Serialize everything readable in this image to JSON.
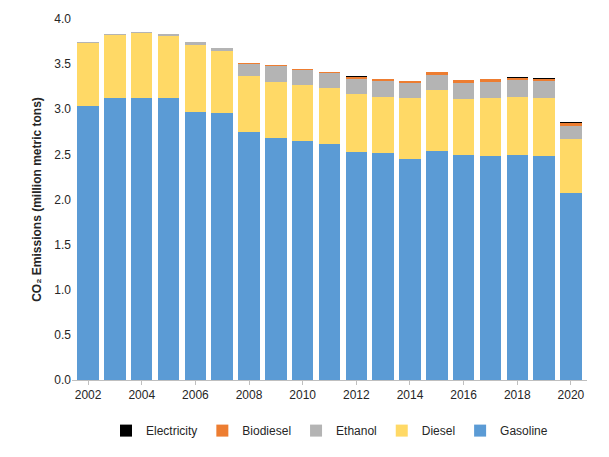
{
  "chart_data": {
    "type": "bar",
    "stacked": true,
    "grid": false,
    "legend": "bottom",
    "y_label": "CO₂ Emissions (million metric tons)",
    "x": [
      2002,
      2003,
      2004,
      2005,
      2006,
      2007,
      2008,
      2009,
      2010,
      2011,
      2012,
      2013,
      2014,
      2015,
      2016,
      2017,
      2018,
      2019,
      2020
    ],
    "xlim": [
      2001.4,
      2020.6
    ],
    "xticks": [
      2002,
      2004,
      2006,
      2008,
      2010,
      2012,
      2014,
      2016,
      2018,
      2020
    ],
    "ylim": [
      0,
      4
    ],
    "yticks": [
      {
        "value": 0,
        "label": "0.0"
      },
      0.5,
      {
        "value": 1,
        "label": "1.0"
      },
      1.5,
      {
        "value": 2,
        "label": "2.0"
      },
      2.5,
      {
        "value": 3,
        "label": "3.0"
      },
      3.5,
      {
        "value": 4,
        "label": "4.0"
      }
    ],
    "series": [
      {
        "name": "Gasoline",
        "color": "#5b9bd5",
        "values": [
          3.04,
          3.13,
          3.13,
          3.12,
          2.97,
          2.96,
          2.75,
          2.68,
          2.65,
          2.61,
          2.53,
          2.52,
          2.45,
          2.54,
          2.49,
          2.48,
          2.49,
          2.48,
          2.07
        ]
      },
      {
        "name": "Diesel",
        "color": "#ffd966",
        "values": [
          0.69,
          0.69,
          0.72,
          0.69,
          0.74,
          0.69,
          0.62,
          0.62,
          0.62,
          0.62,
          0.64,
          0.62,
          0.67,
          0.67,
          0.62,
          0.64,
          0.65,
          0.65,
          0.6
        ]
      },
      {
        "name": "Ethanol",
        "color": "#b4b4b4",
        "values": [
          0.01,
          0.01,
          0.01,
          0.02,
          0.03,
          0.03,
          0.13,
          0.18,
          0.17,
          0.17,
          0.17,
          0.17,
          0.17,
          0.17,
          0.18,
          0.18,
          0.18,
          0.18,
          0.15
        ]
      },
      {
        "name": "Biodiesel",
        "color": "#ed7d31",
        "values": [
          0,
          0,
          0,
          0,
          0,
          0,
          0.01,
          0.01,
          0.01,
          0.01,
          0.02,
          0.02,
          0.02,
          0.03,
          0.03,
          0.03,
          0.03,
          0.03,
          0.03
        ]
      },
      {
        "name": "Electricity",
        "color": "#000000",
        "values": [
          0,
          0,
          0,
          0,
          0,
          0,
          0,
          0,
          0,
          0,
          0.003,
          0.003,
          0.003,
          0.003,
          0.003,
          0.003,
          0.005,
          0.005,
          0.005
        ]
      }
    ]
  }
}
